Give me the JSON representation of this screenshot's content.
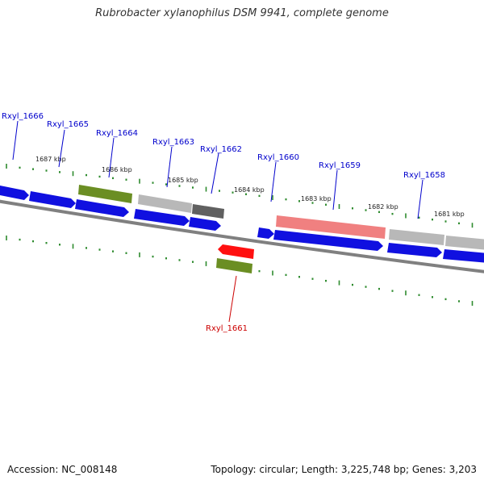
{
  "title": "Rubrobacter xylanophilus DSM 9941, complete genome",
  "footer": {
    "accession": "Accession: NC_008148",
    "summary": "Topology: circular; Length: 3,225,748 bp; Genes: 3,203"
  },
  "colors": {
    "gene_forward": "#1010e0",
    "gene_reverse_highlight": "#ff1010",
    "gene_olive": "#6b8e23",
    "gene_gray": "#b8b8b8",
    "gene_dark_gray": "#606060",
    "gene_pink": "#f08080",
    "tick": "#2e8b2e",
    "backbone": "#808080",
    "label_blue": "#0000cc",
    "label_red": "#cc0000"
  },
  "scale_ticks": [
    {
      "label": "1687 kbp"
    },
    {
      "label": "1686 kbp"
    },
    {
      "label": "1685 kbp"
    },
    {
      "label": "1684 kbp"
    },
    {
      "label": "1683 kbp"
    },
    {
      "label": "1682 kbp"
    },
    {
      "label": "1681 kbp"
    }
  ],
  "gene_labels": [
    {
      "name": "Rxyl_1666",
      "color": "blue"
    },
    {
      "name": "Rxyl_1665",
      "color": "blue"
    },
    {
      "name": "Rxyl_1664",
      "color": "blue"
    },
    {
      "name": "Rxyl_1663",
      "color": "blue"
    },
    {
      "name": "Rxyl_1662",
      "color": "blue"
    },
    {
      "name": "Rxyl_1660",
      "color": "blue"
    },
    {
      "name": "Rxyl_1659",
      "color": "blue"
    },
    {
      "name": "Rxyl_1658",
      "color": "blue"
    },
    {
      "name": "Rxyl_1661",
      "color": "red"
    }
  ]
}
